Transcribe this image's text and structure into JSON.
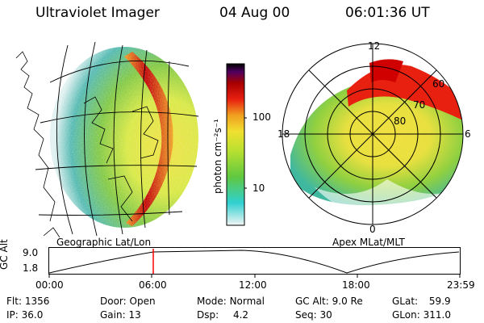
{
  "header": {
    "instrument": "Ultraviolet Imager",
    "date": "04 Aug 00",
    "time": "06:01:36 UT"
  },
  "colorbar": {
    "unit_label": "photon cm⁻²s⁻¹",
    "ticks": [
      "100",
      "10"
    ],
    "scale": "log"
  },
  "left_map": {
    "caption": "Geographic Lat/Lon"
  },
  "polar_plot": {
    "caption": "Apex MLat/MLT",
    "mlt_labels": {
      "top": "12",
      "left": "18",
      "right": "6",
      "bottom": "0"
    },
    "lat_labels": [
      "60",
      "70",
      "80"
    ]
  },
  "timeline": {
    "axis_label": "GC Alt",
    "y_ticks": [
      "9.0",
      "1.8"
    ],
    "x_ticks": [
      "00:00",
      "06:00",
      "12:00",
      "18:00",
      "23:59"
    ],
    "current_time_marker": "06:00"
  },
  "info": {
    "flt": {
      "label": "Flt:",
      "value": "1356"
    },
    "ip": {
      "label": "IP:",
      "value": "36.0"
    },
    "door": {
      "label": "Door:",
      "value": "Open"
    },
    "gain": {
      "label": "Gain:",
      "value": "13"
    },
    "mode": {
      "label": "Mode:",
      "value": "Normal"
    },
    "dsp": {
      "label": "Dsp:",
      "value": "4.2"
    },
    "gcalt": {
      "label": "GC Alt:",
      "value": "9.0 Re"
    },
    "seq": {
      "label": "Seq:",
      "value": "30"
    },
    "glat": {
      "label": "GLat:",
      "value": "59.9"
    },
    "glon": {
      "label": "GLon:",
      "value": "311.0"
    }
  },
  "colors": {
    "background": "#ffffff",
    "marker": "#ff0000",
    "scale": [
      "#f2f2f2",
      "#30d0d0",
      "#60c840",
      "#b8e030",
      "#f0e030",
      "#f0a020",
      "#e82010",
      "#a80000",
      "#500060",
      "#000000"
    ]
  }
}
